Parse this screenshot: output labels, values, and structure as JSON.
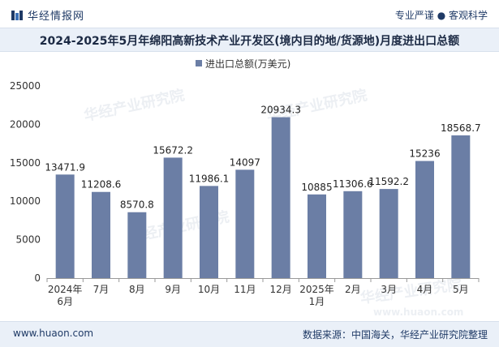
{
  "header": {
    "brand_name": "华经情报网",
    "tagline": "专业严谨 ● 客观科学"
  },
  "title": "2024-2025年5月年绵阳高新技术产业开发区(境内目的地/货源地)月度进出口总额",
  "watermarks": [
    "华经产业研究院",
    "www.huaon.com"
  ],
  "footer": {
    "url": "www.huaon.com",
    "source": "数据来源：中国海关，华经产业研究院整理"
  },
  "colors": {
    "bar": "#6b7ea5",
    "accent": "#1f3a66"
  },
  "chart_data": {
    "type": "bar",
    "title": "2024-2025年5月年绵阳高新技术产业开发区(境内目的地/货源地)月度进出口总额",
    "legend": "进出口总额(万美元)",
    "legend_position": "top-center",
    "categories": [
      [
        "2024年",
        "6月"
      ],
      [
        "7月"
      ],
      [
        "8月"
      ],
      [
        "9月"
      ],
      [
        "10月"
      ],
      [
        "11月"
      ],
      [
        "12月"
      ],
      [
        "2025年",
        "1月"
      ],
      [
        "2月"
      ],
      [
        "3月"
      ],
      [
        "4月"
      ],
      [
        "5月"
      ]
    ],
    "values": [
      13471.9,
      11208.6,
      8570.8,
      15672.2,
      11986.1,
      14097,
      20934.3,
      10885,
      11306.6,
      11592.2,
      15236,
      18568.7
    ],
    "value_labels": [
      "13471.9",
      "11208.6",
      "8570.8",
      "15672.2",
      "11986.1",
      "14097",
      "20934.3",
      "10885",
      "11306.6",
      "11592.2",
      "15236",
      "18568.7"
    ],
    "yticks": [
      "0",
      "5000",
      "10000",
      "15000",
      "20000",
      "25000"
    ],
    "ylim": [
      0,
      25000
    ],
    "xlabel": "",
    "ylabel": "",
    "grid": false
  }
}
